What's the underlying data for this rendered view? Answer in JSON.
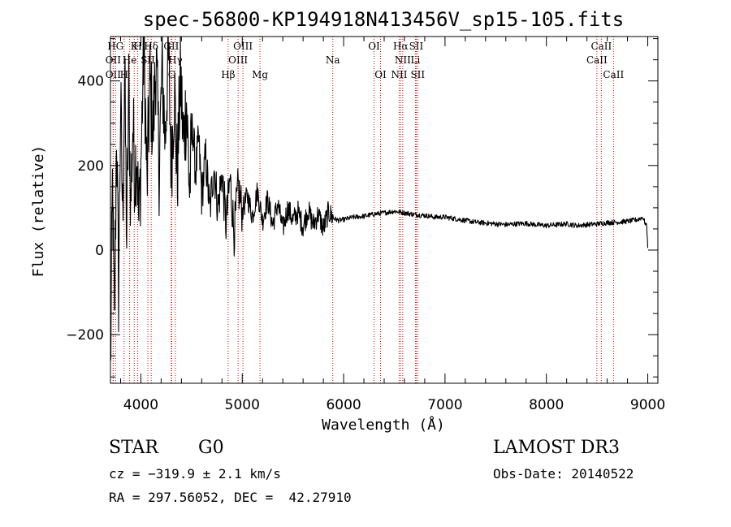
{
  "chart_data": {
    "type": "line",
    "title": "spec-56800-KP194918N413456V_sp15-105.fits",
    "xlabel": "Wavelength (Å)",
    "ylabel": "Flux (relative)",
    "xlim": [
      3700,
      9100
    ],
    "ylim": [
      -315,
      505
    ],
    "xticks": [
      4000,
      5000,
      6000,
      7000,
      8000,
      9000
    ],
    "xtick_labels": [
      "4000",
      "5000",
      "6000",
      "7000",
      "8000",
      "9000"
    ],
    "yticks": [
      -200,
      0,
      200,
      400
    ],
    "ytick_labels": [
      "−200",
      "0",
      "200",
      "400"
    ],
    "series": [
      {
        "name": "flux",
        "x": [
          3700,
          3720,
          3740,
          3760,
          3780,
          3800,
          3820,
          3840,
          3860,
          3880,
          3900,
          3920,
          3940,
          3960,
          3980,
          4000,
          4030,
          4060,
          4090,
          4120,
          4150,
          4180,
          4210,
          4240,
          4270,
          4300,
          4330,
          4360,
          4390,
          4420,
          4450,
          4480,
          4510,
          4540,
          4570,
          4600,
          4640,
          4680,
          4720,
          4760,
          4800,
          4840,
          4880,
          4920,
          4960,
          5000,
          5050,
          5100,
          5150,
          5200,
          5250,
          5300,
          5350,
          5400,
          5450,
          5500,
          5550,
          5600,
          5650,
          5700,
          5750,
          5800,
          5850,
          5900,
          5950,
          6000,
          6100,
          6200,
          6300,
          6400,
          6500,
          6600,
          6700,
          6800,
          6900,
          7000,
          7100,
          7200,
          7300,
          7400,
          7500,
          7600,
          7700,
          7800,
          7900,
          8000,
          8100,
          8200,
          8300,
          8400,
          8500,
          8600,
          8700,
          8800,
          8900,
          8950,
          8990,
          9000
        ],
        "y": [
          -300,
          150,
          -200,
          300,
          -100,
          350,
          80,
          420,
          20,
          380,
          100,
          300,
          180,
          250,
          60,
          200,
          500,
          150,
          400,
          280,
          460,
          200,
          430,
          260,
          480,
          200,
          380,
          170,
          420,
          250,
          350,
          140,
          300,
          180,
          260,
          130,
          220,
          90,
          200,
          100,
          180,
          60,
          170,
          40,
          150,
          90,
          130,
          80,
          140,
          70,
          120,
          60,
          110,
          50,
          100,
          70,
          90,
          55,
          95,
          60,
          85,
          50,
          90,
          75,
          70,
          72,
          78,
          80,
          85,
          88,
          92,
          88,
          84,
          82,
          78,
          78,
          74,
          70,
          66,
          64,
          62,
          60,
          62,
          63,
          60,
          58,
          60,
          62,
          58,
          60,
          62,
          65,
          66,
          68,
          72,
          78,
          55,
          5
        ]
      }
    ],
    "line_markers": [
      {
        "label": "HG",
        "wavelength": 3750,
        "row": 0
      },
      {
        "label": "K",
        "wavelength": 3934,
        "row": 0
      },
      {
        "label": "H",
        "wavelength": 3969,
        "row": 0
      },
      {
        "label": "Hδ",
        "wavelength": 4102,
        "row": 0
      },
      {
        "label": "OII",
        "wavelength": 3727,
        "row": 1
      },
      {
        "label": "He",
        "wavelength": 3889,
        "row": 1
      },
      {
        "label": "SII",
        "wavelength": 4069,
        "row": 1
      },
      {
        "label": "OII",
        "wavelength": 3727,
        "row": 2
      },
      {
        "label": "H",
        "wavelength": 3835,
        "row": 2
      },
      {
        "label": "GII",
        "wavelength": 4300,
        "row": 0
      },
      {
        "label": "Hγ",
        "wavelength": 4340,
        "row": 1
      },
      {
        "label": "G",
        "wavelength": 4305,
        "row": 2
      },
      {
        "label": "OIII",
        "wavelength": 5007,
        "row": 0
      },
      {
        "label": "OIII",
        "wavelength": 4959,
        "row": 1
      },
      {
        "label": "Hβ",
        "wavelength": 4861,
        "row": 2
      },
      {
        "label": "Mg",
        "wavelength": 5175,
        "row": 2
      },
      {
        "label": "Na",
        "wavelength": 5893,
        "row": 1
      },
      {
        "label": "OI",
        "wavelength": 6300,
        "row": 0
      },
      {
        "label": "OI",
        "wavelength": 6364,
        "row": 2
      },
      {
        "label": "Hα",
        "wavelength": 6563,
        "row": 0
      },
      {
        "label": "SII",
        "wavelength": 6716,
        "row": 0
      },
      {
        "label": "NII",
        "wavelength": 6583,
        "row": 1
      },
      {
        "label": "Li",
        "wavelength": 6708,
        "row": 1
      },
      {
        "label": "NII",
        "wavelength": 6548,
        "row": 2
      },
      {
        "label": "SII",
        "wavelength": 6731,
        "row": 2
      },
      {
        "label": "CaII",
        "wavelength": 8542,
        "row": 0
      },
      {
        "label": "CaII",
        "wavelength": 8498,
        "row": 1
      },
      {
        "label": "CaII",
        "wavelength": 8662,
        "row": 2
      }
    ],
    "line_color": "#000000",
    "marker_color": "#cc0000"
  },
  "info": {
    "class": "STAR",
    "subclass": "G0",
    "survey": "LAMOST DR3",
    "redshift": "cz = −319.9 ± 2.1 km/s",
    "obs_date": "Obs-Date: 20140522",
    "coords": "RA = 297.56052, DEC =  42.27910"
  }
}
